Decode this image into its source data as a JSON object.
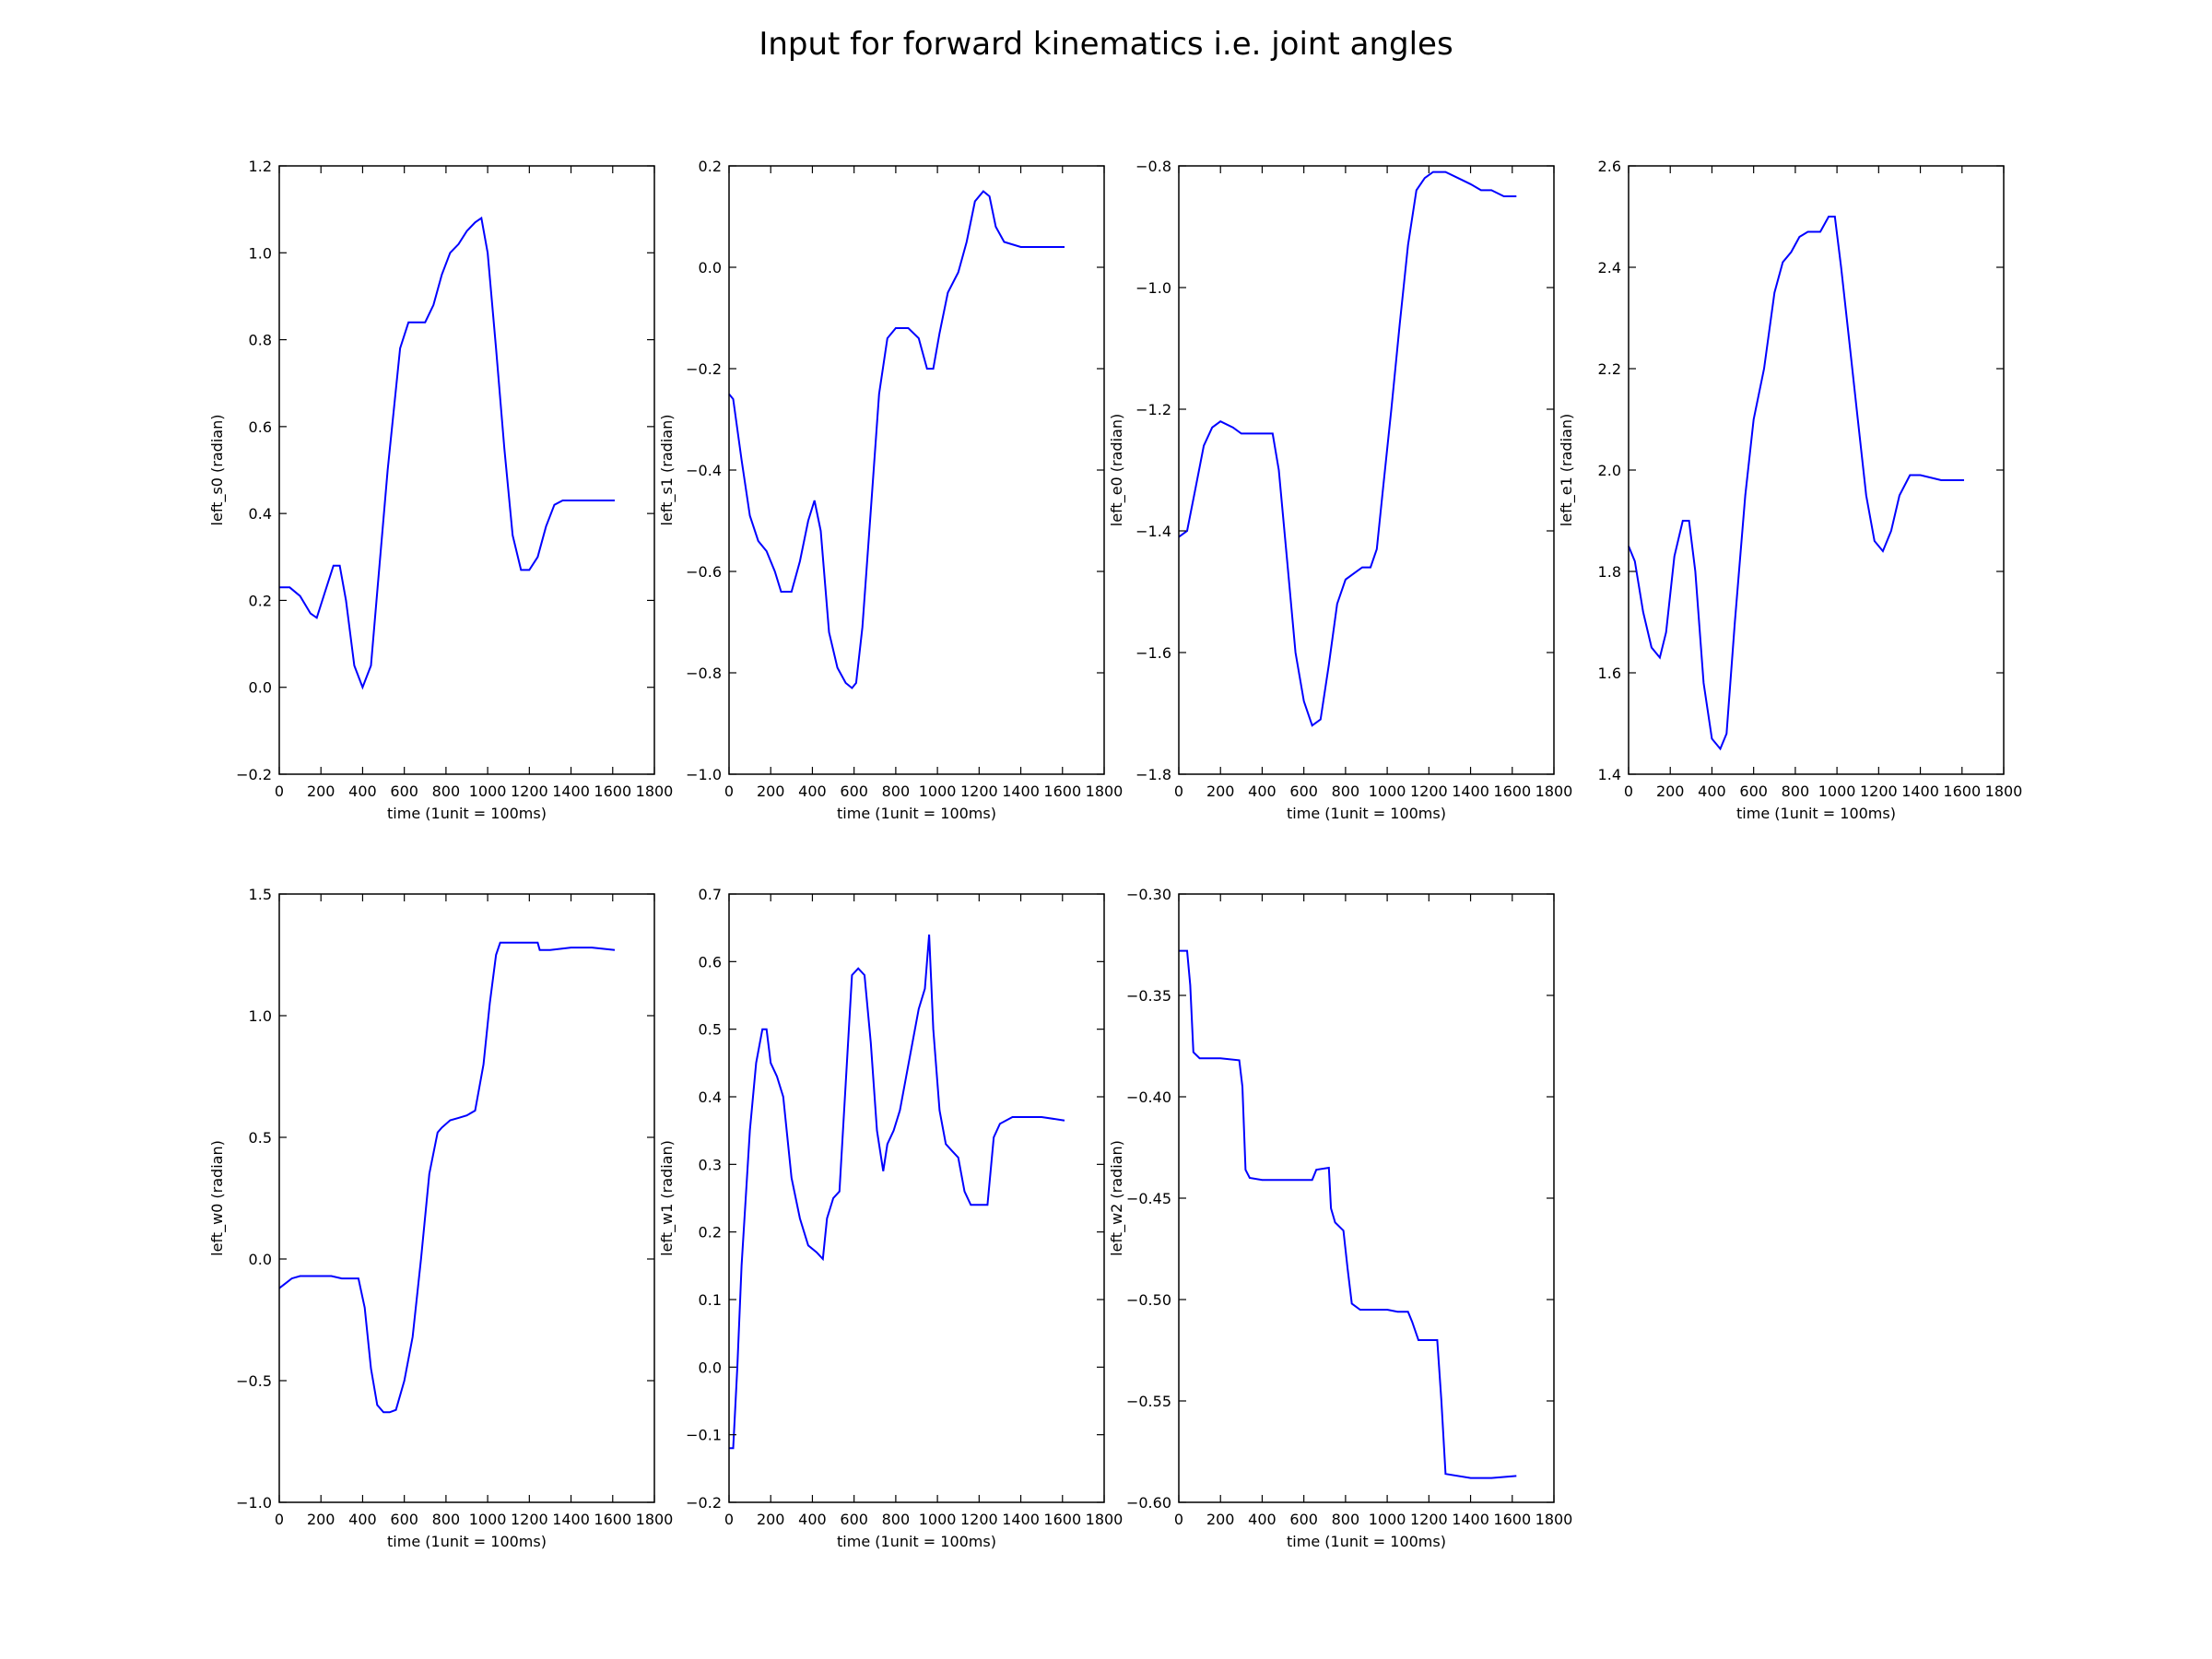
{
  "figure": {
    "title": "Input for forward kinematics i.e. joint angles",
    "line_color": "#0000ff"
  },
  "chart_data": [
    {
      "type": "line",
      "xlabel": "time (1unit = 100ms)",
      "ylabel": "left_s0 (radian)",
      "xlim": [
        0,
        1800
      ],
      "ylim": [
        -0.2,
        1.2
      ],
      "xticks": [
        0,
        200,
        400,
        600,
        800,
        1000,
        1200,
        1400,
        1600,
        1800
      ],
      "yticks": [
        -0.2,
        0.0,
        0.2,
        0.4,
        0.6,
        0.8,
        1.0,
        1.2
      ],
      "ytick_labels": [
        "−0.2",
        "0.0",
        "0.2",
        "0.4",
        "0.6",
        "0.8",
        "1.0",
        "1.2"
      ],
      "x": [
        0,
        50,
        100,
        150,
        180,
        220,
        260,
        290,
        320,
        360,
        400,
        440,
        470,
        520,
        580,
        620,
        660,
        700,
        740,
        780,
        820,
        860,
        900,
        940,
        970,
        1000,
        1040,
        1080,
        1120,
        1160,
        1200,
        1240,
        1280,
        1320,
        1360,
        1400,
        1500,
        1610
      ],
      "y": [
        0.23,
        0.23,
        0.21,
        0.17,
        0.16,
        0.22,
        0.28,
        0.28,
        0.2,
        0.05,
        0.0,
        0.05,
        0.22,
        0.5,
        0.78,
        0.84,
        0.84,
        0.84,
        0.88,
        0.95,
        1.0,
        1.02,
        1.05,
        1.07,
        1.08,
        1.0,
        0.78,
        0.55,
        0.35,
        0.27,
        0.27,
        0.3,
        0.37,
        0.42,
        0.43,
        0.43,
        0.43,
        0.43
      ]
    },
    {
      "type": "line",
      "xlabel": "time (1unit = 100ms)",
      "ylabel": "left_s1 (radian)",
      "xlim": [
        0,
        1800
      ],
      "ylim": [
        -1.0,
        0.2
      ],
      "xticks": [
        0,
        200,
        400,
        600,
        800,
        1000,
        1200,
        1400,
        1600,
        1800
      ],
      "yticks": [
        -1.0,
        -0.8,
        -0.6,
        -0.4,
        -0.2,
        0.0,
        0.2
      ],
      "ytick_labels": [
        "−1.0",
        "−0.8",
        "−0.6",
        "−0.4",
        "−0.2",
        "0.0",
        "0.2"
      ],
      "x": [
        0,
        20,
        60,
        100,
        140,
        180,
        220,
        250,
        300,
        340,
        380,
        410,
        440,
        480,
        520,
        560,
        590,
        610,
        640,
        680,
        720,
        760,
        800,
        860,
        910,
        950,
        980,
        1010,
        1050,
        1100,
        1140,
        1180,
        1220,
        1250,
        1280,
        1320,
        1400,
        1500,
        1610
      ],
      "y": [
        -0.25,
        -0.26,
        -0.38,
        -0.49,
        -0.54,
        -0.56,
        -0.6,
        -0.64,
        -0.64,
        -0.58,
        -0.5,
        -0.46,
        -0.52,
        -0.72,
        -0.79,
        -0.82,
        -0.83,
        -0.82,
        -0.71,
        -0.48,
        -0.25,
        -0.14,
        -0.12,
        -0.12,
        -0.14,
        -0.2,
        -0.2,
        -0.13,
        -0.05,
        -0.01,
        0.05,
        0.13,
        0.15,
        0.14,
        0.08,
        0.05,
        0.04,
        0.04,
        0.04
      ]
    },
    {
      "type": "line",
      "xlabel": "time (1unit = 100ms)",
      "ylabel": "left_e0 (radian)",
      "xlim": [
        0,
        1800
      ],
      "ylim": [
        -1.8,
        -0.8
      ],
      "xticks": [
        0,
        200,
        400,
        600,
        800,
        1000,
        1200,
        1400,
        1600,
        1800
      ],
      "yticks": [
        -1.8,
        -1.6,
        -1.4,
        -1.2,
        -1.0,
        -0.8
      ],
      "ytick_labels": [
        "−1.8",
        "−1.6",
        "−1.4",
        "−1.2",
        "−1.0",
        "−0.8"
      ],
      "x": [
        0,
        40,
        80,
        120,
        160,
        200,
        260,
        300,
        340,
        400,
        450,
        480,
        520,
        560,
        600,
        640,
        680,
        720,
        760,
        800,
        840,
        880,
        920,
        950,
        980,
        1020,
        1060,
        1100,
        1140,
        1180,
        1220,
        1280,
        1340,
        1400,
        1450,
        1500,
        1560,
        1620
      ],
      "y": [
        -1.41,
        -1.4,
        -1.33,
        -1.26,
        -1.23,
        -1.22,
        -1.23,
        -1.24,
        -1.24,
        -1.24,
        -1.24,
        -1.3,
        -1.45,
        -1.6,
        -1.68,
        -1.72,
        -1.71,
        -1.62,
        -1.52,
        -1.48,
        -1.47,
        -1.46,
        -1.46,
        -1.43,
        -1.33,
        -1.2,
        -1.06,
        -0.93,
        -0.84,
        -0.82,
        -0.81,
        -0.81,
        -0.82,
        -0.83,
        -0.84,
        -0.84,
        -0.85,
        -0.85
      ]
    },
    {
      "type": "line",
      "xlabel": "time (1unit = 100ms)",
      "ylabel": "left_e1 (radian)",
      "xlim": [
        0,
        1800
      ],
      "ylim": [
        1.4,
        2.6
      ],
      "xticks": [
        0,
        200,
        400,
        600,
        800,
        1000,
        1200,
        1400,
        1600,
        1800
      ],
      "yticks": [
        1.4,
        1.6,
        1.8,
        2.0,
        2.2,
        2.4,
        2.6
      ],
      "ytick_labels": [
        "1.4",
        "1.6",
        "1.8",
        "2.0",
        "2.2",
        "2.4",
        "2.6"
      ],
      "x": [
        0,
        30,
        70,
        110,
        150,
        180,
        220,
        260,
        290,
        320,
        360,
        400,
        440,
        470,
        510,
        560,
        600,
        650,
        700,
        740,
        780,
        820,
        860,
        920,
        960,
        990,
        1020,
        1060,
        1100,
        1140,
        1180,
        1220,
        1260,
        1300,
        1350,
        1400,
        1500,
        1610
      ],
      "y": [
        1.85,
        1.82,
        1.72,
        1.65,
        1.63,
        1.68,
        1.83,
        1.9,
        1.9,
        1.8,
        1.58,
        1.47,
        1.45,
        1.48,
        1.7,
        1.95,
        2.1,
        2.2,
        2.35,
        2.41,
        2.43,
        2.46,
        2.47,
        2.47,
        2.5,
        2.5,
        2.4,
        2.25,
        2.1,
        1.95,
        1.86,
        1.84,
        1.88,
        1.95,
        1.99,
        1.99,
        1.98,
        1.98
      ]
    },
    {
      "type": "line",
      "xlabel": "time (1unit = 100ms)",
      "ylabel": "left_w0 (radian)",
      "xlim": [
        0,
        1800
      ],
      "ylim": [
        -1.0,
        1.5
      ],
      "xticks": [
        0,
        200,
        400,
        600,
        800,
        1000,
        1200,
        1400,
        1600,
        1800
      ],
      "yticks": [
        -1.0,
        -0.5,
        0.0,
        0.5,
        1.0,
        1.5
      ],
      "ytick_labels": [
        "−1.0",
        "−0.5",
        "0.0",
        "0.5",
        "1.0",
        "1.5"
      ],
      "x": [
        0,
        30,
        60,
        100,
        150,
        200,
        250,
        300,
        340,
        380,
        410,
        440,
        470,
        500,
        530,
        560,
        600,
        640,
        680,
        720,
        760,
        780,
        820,
        860,
        900,
        940,
        980,
        1010,
        1040,
        1060,
        1100,
        1150,
        1240,
        1250,
        1300,
        1400,
        1500,
        1610
      ],
      "y": [
        -0.12,
        -0.1,
        -0.08,
        -0.07,
        -0.07,
        -0.07,
        -0.07,
        -0.08,
        -0.08,
        -0.08,
        -0.2,
        -0.45,
        -0.6,
        -0.63,
        -0.63,
        -0.62,
        -0.5,
        -0.32,
        0.0,
        0.35,
        0.52,
        0.54,
        0.57,
        0.58,
        0.59,
        0.61,
        0.8,
        1.05,
        1.25,
        1.3,
        1.3,
        1.3,
        1.3,
        1.27,
        1.27,
        1.28,
        1.28,
        1.27
      ]
    },
    {
      "type": "line",
      "xlabel": "time (1unit = 100ms)",
      "ylabel": "left_w1 (radian)",
      "xlim": [
        0,
        1800
      ],
      "ylim": [
        -0.2,
        0.7
      ],
      "xticks": [
        0,
        200,
        400,
        600,
        800,
        1000,
        1200,
        1400,
        1600,
        1800
      ],
      "yticks": [
        -0.2,
        -0.1,
        0.0,
        0.1,
        0.2,
        0.3,
        0.4,
        0.5,
        0.6,
        0.7
      ],
      "ytick_labels": [
        "−0.2",
        "−0.1",
        "0.0",
        "0.1",
        "0.2",
        "0.3",
        "0.4",
        "0.5",
        "0.6",
        "0.7"
      ],
      "x": [
        0,
        20,
        40,
        60,
        80,
        100,
        130,
        160,
        180,
        200,
        230,
        260,
        280,
        300,
        340,
        380,
        420,
        450,
        470,
        500,
        530,
        560,
        590,
        620,
        650,
        680,
        710,
        740,
        760,
        790,
        820,
        850,
        880,
        910,
        940,
        960,
        980,
        1010,
        1040,
        1070,
        1100,
        1130,
        1160,
        1200,
        1240,
        1270,
        1300,
        1360,
        1420,
        1500,
        1610
      ],
      "y": [
        -0.12,
        -0.12,
        0.0,
        0.15,
        0.25,
        0.35,
        0.45,
        0.5,
        0.5,
        0.45,
        0.43,
        0.4,
        0.34,
        0.28,
        0.22,
        0.18,
        0.17,
        0.16,
        0.22,
        0.25,
        0.26,
        0.42,
        0.58,
        0.59,
        0.58,
        0.48,
        0.35,
        0.29,
        0.33,
        0.35,
        0.38,
        0.43,
        0.48,
        0.53,
        0.56,
        0.64,
        0.5,
        0.38,
        0.33,
        0.32,
        0.31,
        0.26,
        0.24,
        0.24,
        0.24,
        0.34,
        0.36,
        0.37,
        0.37,
        0.37,
        0.365
      ]
    },
    {
      "type": "line",
      "xlabel": "time (1unit = 100ms)",
      "ylabel": "left_w2 (radian)",
      "xlim": [
        0,
        1800
      ],
      "ylim": [
        -0.6,
        -0.3
      ],
      "xticks": [
        0,
        200,
        400,
        600,
        800,
        1000,
        1200,
        1400,
        1600,
        1800
      ],
      "yticks": [
        -0.6,
        -0.55,
        -0.5,
        -0.45,
        -0.4,
        -0.35,
        -0.3
      ],
      "ytick_labels": [
        "−0.60",
        "−0.55",
        "−0.50",
        "−0.45",
        "−0.40",
        "−0.35",
        "−0.30"
      ],
      "x": [
        0,
        40,
        55,
        70,
        100,
        200,
        290,
        305,
        320,
        340,
        400,
        500,
        640,
        660,
        720,
        730,
        750,
        790,
        810,
        830,
        870,
        1000,
        1050,
        1100,
        1120,
        1150,
        1240,
        1260,
        1280,
        1400,
        1500,
        1620
      ],
      "y": [
        -0.328,
        -0.328,
        -0.345,
        -0.378,
        -0.381,
        -0.381,
        -0.382,
        -0.395,
        -0.436,
        -0.44,
        -0.441,
        -0.441,
        -0.441,
        -0.436,
        -0.435,
        -0.455,
        -0.462,
        -0.466,
        -0.485,
        -0.502,
        -0.505,
        -0.505,
        -0.506,
        -0.506,
        -0.511,
        -0.52,
        -0.52,
        -0.55,
        -0.586,
        -0.588,
        -0.588,
        -0.587
      ]
    }
  ]
}
